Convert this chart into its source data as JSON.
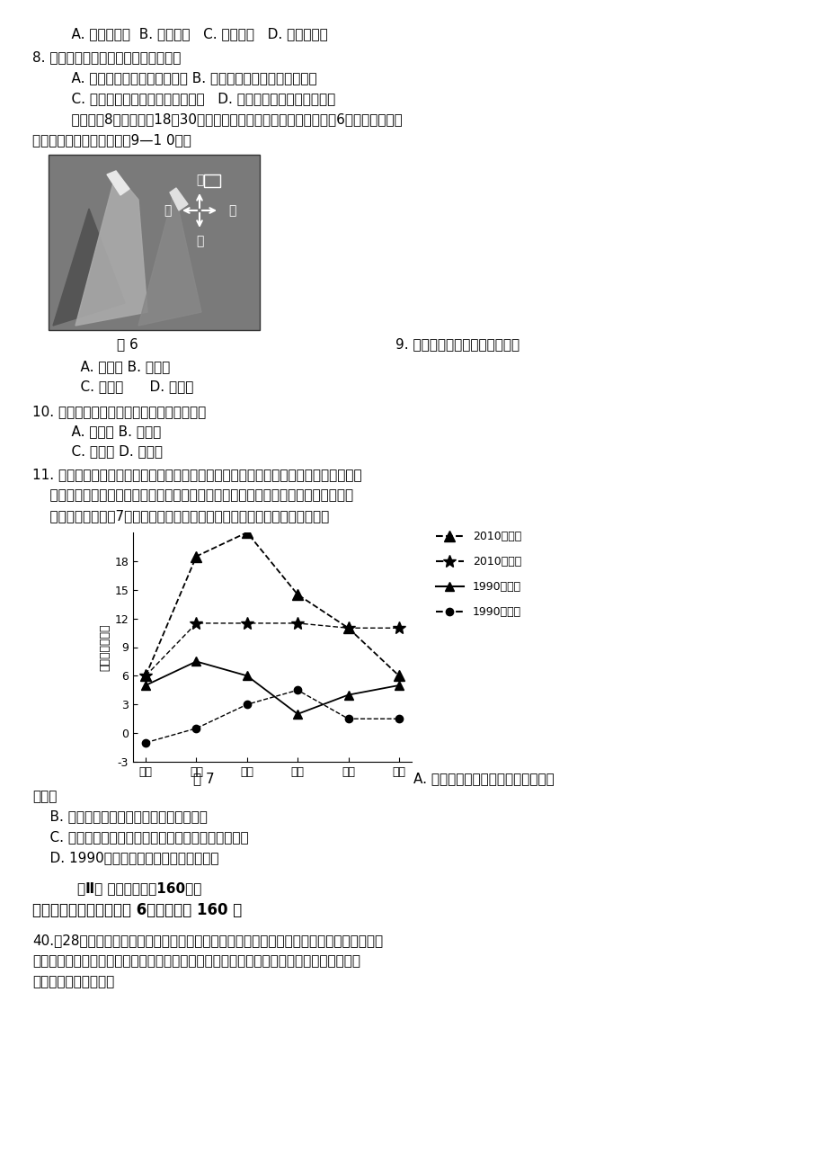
{
  "bg_color": "#ffffff",
  "line1": "    A. 土地盐碱化  B. 水土流失   C. 酸雨危害   D. 臭氧层破坏",
  "q8": "8. 有关该县农村秸秆利用方式的说法是",
  "q8a": "    A. 利用不充分，存在浪费现象 B. 主要用于还田，提高土壤肥力",
  "q8b": "    C. 直接作为生活燃料，燃烧效率高   D. 利用方式多样化，科学合理",
  "intro": "    某旅客于8月中旬坐咄18：30起飞的飞机，从西安飞往乌鲁木齐，图6为该旅客途经祖",
  "intro2": "连山时拍下的照片，请回答9—1 0题。",
  "fig6_caption": "图 6",
  "q9_text": "9. 此时飞机的飞行方向是图中的",
  "q9a": "    A. 甲方向 B. 乙方向",
  "q9b": "    C. 丙方向      D. 丁方向",
  "q10": "10. 图中的冰雪仅分布在山的一侧，此侧属于",
  "q10a": "    A. 向阳坡 B. 迎风坡",
  "q10b": "    C. 背阳坡 D. 背风坡",
  "q11": "11. 区域产业竞争力系数表示该区域某产业产品的输出额占一定区域市场的比重，产业竞",
  "q11b": "    争力系数越大，产业竞争力也就越强。各地产业竞争力系数的变化，可以反映产业转",
  "q11c": "    移的动态趋势。图7为上海市与浙江省各产业竞争力系数变化图，此图表现了",
  "fig7_caption": "图 7",
  "q11_ansA": "A. 家具企业从上海向浙江转移的趋势",
  "q11_ans2": "最明显",
  "q11b_ans": "    B. 浙江省一直输出图中所列制造业的产品",
  "q11c_ans": "    C. 皮革和文体用品可能存在从上海向浙江转移的趋势",
  "q11d_ans": "    D. 1990年上海的产业竞争力均高于浙江",
  "sec2_title": "    第Ⅱ卷 非选择题（共160分）",
  "sec2_sub": "二、非选择题：本大题共 6小题，满分 160 分",
  "q40": "40.（28分）牙买加是大西洋西侧的一个面积狭小的岛国，岛上地形多山地高原，铝矾土矿储",
  "q40b": "量丰富，居世界第四位。旅游业、矿业、农业是国民经济的支柱。根据下列材料，结合所学",
  "q40c": "知识，完成下列问题。",
  "categories": [
    "烟草",
    "家具",
    "皮革",
    "文体",
    "机械",
    "通讯"
  ],
  "series_2010_zhejiang": [
    6.0,
    18.5,
    21.0,
    14.5,
    11.0,
    6.0
  ],
  "series_2010_shanghai": [
    6.0,
    11.5,
    11.5,
    11.5,
    11.0,
    11.0
  ],
  "series_1990_zhejiang": [
    5.0,
    7.5,
    6.0,
    2.0,
    4.0,
    5.0
  ],
  "series_1990_shanghai": [
    -1.0,
    0.5,
    3.0,
    4.5,
    1.5,
    1.5
  ],
  "ylabel": "产业竞争力系数",
  "ylim": [
    -3,
    21
  ],
  "yticks": [
    -3,
    0,
    3,
    6,
    9,
    12,
    15,
    18
  ]
}
